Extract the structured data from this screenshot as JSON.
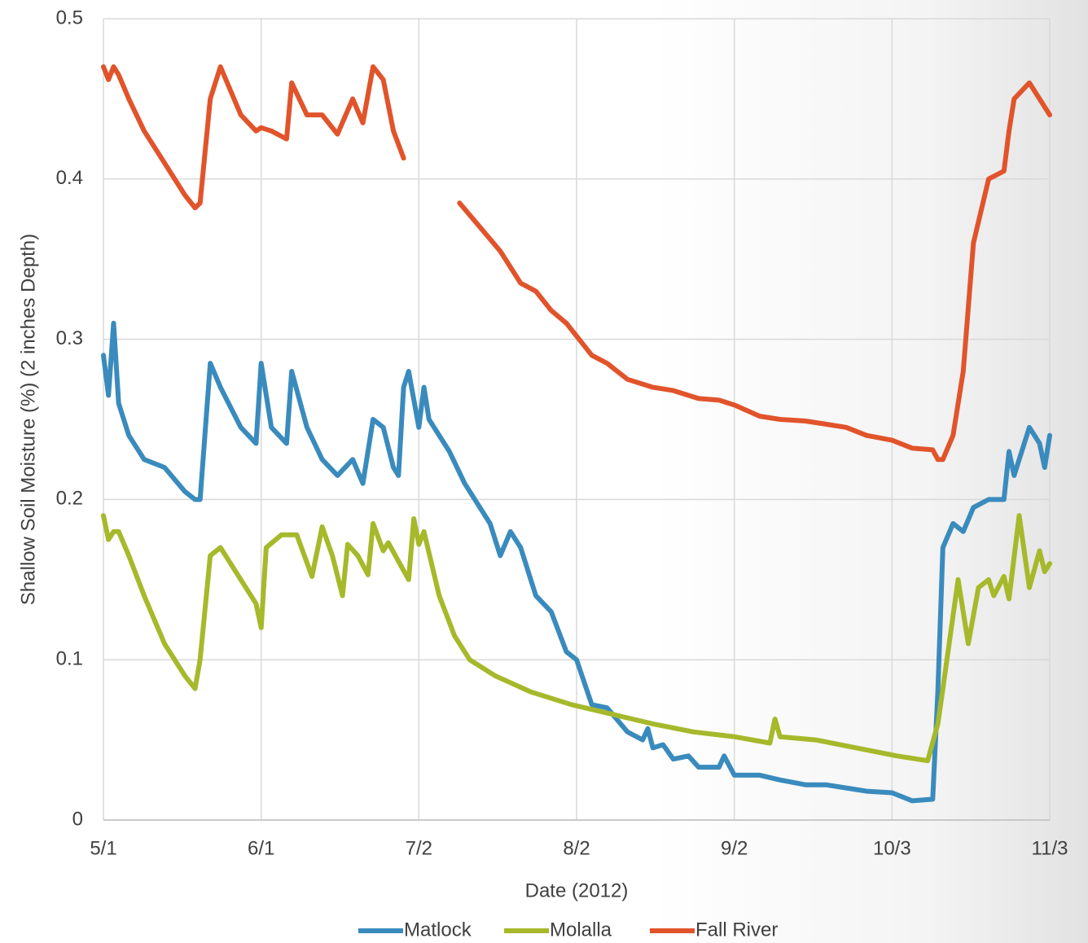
{
  "chart_data": {
    "type": "line",
    "x_label": "Date (2012)",
    "y_label": "Shallow Soil Moisture (%) (2 inches Depth)",
    "xlim": [
      "2012-05-01",
      "2012-11-03"
    ],
    "xticks": [
      {
        "value": "2012-05-01",
        "label": "5/1"
      },
      {
        "value": "2012-06-01",
        "label": "6/1"
      },
      {
        "value": "2012-07-02",
        "label": "7/2"
      },
      {
        "value": "2012-08-02",
        "label": "8/2"
      },
      {
        "value": "2012-09-02",
        "label": "9/2"
      },
      {
        "value": "2012-10-03",
        "label": "10/3"
      },
      {
        "value": "2012-11-03",
        "label": "11/3"
      }
    ],
    "ylim": [
      0,
      0.5
    ],
    "yticks": [
      0,
      0.1,
      0.2,
      0.3,
      0.4,
      0.5
    ],
    "grid": true,
    "legend": "bottom",
    "series": [
      {
        "name": "Matlock",
        "color": "#3a8bbd",
        "x": [
          "2012-05-01",
          "2012-05-02",
          "2012-05-03",
          "2012-05-04",
          "2012-05-06",
          "2012-05-09",
          "2012-05-13",
          "2012-05-17",
          "2012-05-19",
          "2012-05-20",
          "2012-05-22",
          "2012-05-24",
          "2012-05-28",
          "2012-05-31",
          "2012-06-01",
          "2012-06-03",
          "2012-06-06",
          "2012-06-07",
          "2012-06-10",
          "2012-06-13",
          "2012-06-16",
          "2012-06-19",
          "2012-06-21",
          "2012-06-23",
          "2012-06-25",
          "2012-06-27",
          "2012-06-28",
          "2012-06-29",
          "2012-06-30",
          "2012-07-02",
          "2012-07-03",
          "2012-07-04",
          "2012-07-08",
          "2012-07-11",
          "2012-07-14",
          "2012-07-16",
          "2012-07-18",
          "2012-07-20",
          "2012-07-22",
          "2012-07-25",
          "2012-07-28",
          "2012-07-31",
          "2012-08-02",
          "2012-08-05",
          "2012-08-08",
          "2012-08-12",
          "2012-08-15",
          "2012-08-16",
          "2012-08-17",
          "2012-08-19",
          "2012-08-21",
          "2012-08-24",
          "2012-08-26",
          "2012-08-30",
          "2012-08-31",
          "2012-09-02",
          "2012-09-07",
          "2012-09-11",
          "2012-09-16",
          "2012-09-20",
          "2012-09-24",
          "2012-09-28",
          "2012-10-03",
          "2012-10-07",
          "2012-10-11",
          "2012-10-12",
          "2012-10-13",
          "2012-10-15",
          "2012-10-17",
          "2012-10-19",
          "2012-10-22",
          "2012-10-25",
          "2012-10-26",
          "2012-10-27",
          "2012-10-30",
          "2012-11-01",
          "2012-11-02",
          "2012-11-03"
        ],
        "values": [
          0.29,
          0.265,
          0.31,
          0.26,
          0.24,
          0.225,
          0.22,
          0.205,
          0.2,
          0.2,
          0.285,
          0.27,
          0.245,
          0.235,
          0.285,
          0.245,
          0.235,
          0.28,
          0.245,
          0.225,
          0.215,
          0.225,
          0.21,
          0.25,
          0.245,
          0.22,
          0.215,
          0.27,
          0.28,
          0.245,
          0.27,
          0.25,
          0.23,
          0.21,
          0.195,
          0.185,
          0.165,
          0.18,
          0.17,
          0.14,
          0.13,
          0.105,
          0.1,
          0.072,
          0.07,
          0.055,
          0.05,
          0.057,
          0.045,
          0.047,
          0.038,
          0.04,
          0.033,
          0.033,
          0.04,
          0.028,
          0.028,
          0.025,
          0.022,
          0.022,
          0.02,
          0.018,
          0.017,
          0.012,
          0.013,
          0.08,
          0.17,
          0.185,
          0.18,
          0.195,
          0.2,
          0.2,
          0.23,
          0.215,
          0.245,
          0.235,
          0.22,
          0.24
        ]
      },
      {
        "name": "Molalla",
        "color": "#a6b92b",
        "x": [
          "2012-05-01",
          "2012-05-02",
          "2012-05-03",
          "2012-05-04",
          "2012-05-06",
          "2012-05-09",
          "2012-05-13",
          "2012-05-17",
          "2012-05-19",
          "2012-05-20",
          "2012-05-22",
          "2012-05-24",
          "2012-05-28",
          "2012-05-31",
          "2012-06-01",
          "2012-06-02",
          "2012-06-05",
          "2012-06-08",
          "2012-06-11",
          "2012-06-13",
          "2012-06-15",
          "2012-06-17",
          "2012-06-18",
          "2012-06-20",
          "2012-06-22",
          "2012-06-23",
          "2012-06-25",
          "2012-06-26",
          "2012-06-30",
          "2012-07-01",
          "2012-07-02",
          "2012-07-03",
          "2012-07-06",
          "2012-07-09",
          "2012-07-12",
          "2012-07-17",
          "2012-07-24",
          "2012-08-01",
          "2012-08-09",
          "2012-08-17",
          "2012-08-25",
          "2012-09-02",
          "2012-09-09",
          "2012-09-10",
          "2012-09-11",
          "2012-09-18",
          "2012-09-26",
          "2012-10-04",
          "2012-10-10",
          "2012-10-12",
          "2012-10-13",
          "2012-10-16",
          "2012-10-18",
          "2012-10-20",
          "2012-10-22",
          "2012-10-23",
          "2012-10-25",
          "2012-10-26",
          "2012-10-28",
          "2012-10-30",
          "2012-11-01",
          "2012-11-02",
          "2012-11-03"
        ],
        "values": [
          0.19,
          0.175,
          0.18,
          0.18,
          0.165,
          0.14,
          0.11,
          0.09,
          0.082,
          0.1,
          0.165,
          0.17,
          0.15,
          0.135,
          0.12,
          0.17,
          0.178,
          0.178,
          0.152,
          0.183,
          0.165,
          0.14,
          0.172,
          0.165,
          0.153,
          0.185,
          0.168,
          0.173,
          0.15,
          0.188,
          0.172,
          0.18,
          0.14,
          0.115,
          0.1,
          0.09,
          0.08,
          0.072,
          0.066,
          0.06,
          0.055,
          0.052,
          0.048,
          0.063,
          0.052,
          0.05,
          0.045,
          0.04,
          0.037,
          0.06,
          0.082,
          0.15,
          0.11,
          0.145,
          0.15,
          0.14,
          0.152,
          0.138,
          0.19,
          0.145,
          0.168,
          0.155,
          0.16
        ]
      },
      {
        "name": "Fall River",
        "color": "#e1542b",
        "x": [
          "2012-05-01",
          "2012-05-02",
          "2012-05-03",
          "2012-05-04",
          "2012-05-06",
          "2012-05-09",
          "2012-05-13",
          "2012-05-17",
          "2012-05-19",
          "2012-05-20",
          "2012-05-22",
          "2012-05-24",
          "2012-05-28",
          "2012-05-31",
          "2012-06-01",
          "2012-06-03",
          "2012-06-06",
          "2012-06-07",
          "2012-06-10",
          "2012-06-13",
          "2012-06-16",
          "2012-06-19",
          "2012-06-21",
          "2012-06-23",
          "2012-06-25",
          "2012-06-27",
          "2012-06-29",
          "2012-07-04",
          "2012-07-10",
          "2012-07-14",
          "2012-07-18",
          "2012-07-22",
          "2012-07-25",
          "2012-07-28",
          "2012-07-31",
          "2012-08-05",
          "2012-08-08",
          "2012-08-12",
          "2012-08-17",
          "2012-08-21",
          "2012-08-26",
          "2012-08-30",
          "2012-09-02",
          "2012-09-07",
          "2012-09-11",
          "2012-09-16",
          "2012-09-20",
          "2012-09-24",
          "2012-09-28",
          "2012-10-03",
          "2012-10-07",
          "2012-10-11",
          "2012-10-12",
          "2012-10-13",
          "2012-10-15",
          "2012-10-17",
          "2012-10-19",
          "2012-10-22",
          "2012-10-25",
          "2012-10-26",
          "2012-10-27",
          "2012-10-30",
          "2012-11-01",
          "2012-11-03"
        ],
        "values": [
          0.47,
          0.462,
          0.47,
          0.465,
          0.45,
          0.43,
          0.41,
          0.39,
          0.382,
          0.385,
          0.45,
          0.47,
          0.44,
          0.43,
          0.432,
          0.43,
          0.425,
          0.46,
          0.44,
          0.44,
          0.428,
          0.45,
          0.435,
          0.47,
          0.462,
          0.43,
          0.413,
          null,
          0.385,
          0.37,
          0.355,
          0.335,
          0.33,
          0.318,
          0.31,
          0.29,
          0.285,
          0.275,
          0.27,
          0.268,
          0.263,
          0.262,
          0.259,
          0.252,
          0.25,
          0.249,
          0.247,
          0.245,
          0.24,
          0.237,
          0.232,
          0.231,
          0.225,
          0.225,
          0.24,
          0.28,
          0.36,
          0.4,
          0.405,
          0.43,
          0.45,
          0.46,
          0.45,
          0.44
        ]
      }
    ]
  }
}
